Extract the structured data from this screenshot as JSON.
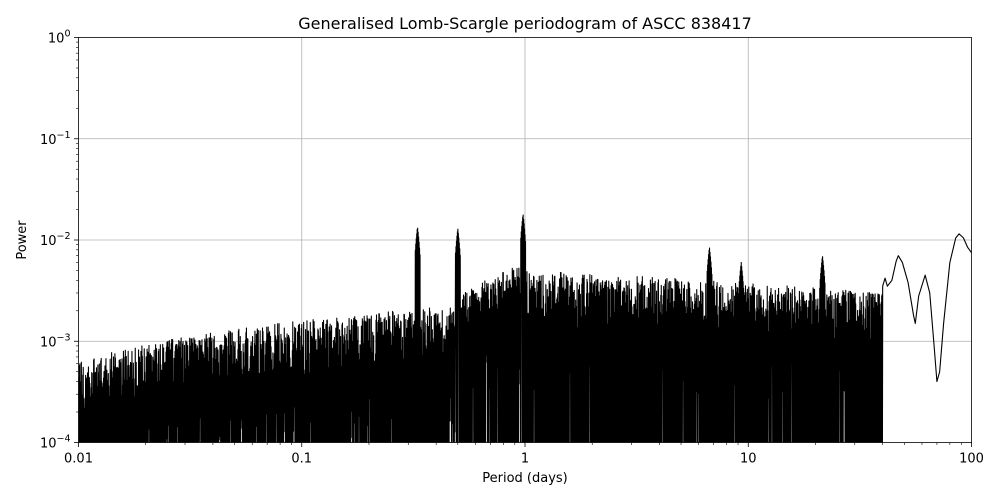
{
  "chart_data": {
    "type": "line",
    "title": "Generalised Lomb-Scargle periodogram of ASCC 838417",
    "xlabel": "Period (days)",
    "ylabel": "Power",
    "xscale": "log",
    "yscale": "log",
    "xlim": [
      0.01,
      100
    ],
    "ylim": [
      0.0001,
      1
    ],
    "grid": true,
    "line_color": "#000000",
    "x_ticks": [
      {
        "value": 0.01,
        "label": "0.01"
      },
      {
        "value": 0.1,
        "label": "0.1"
      },
      {
        "value": 1,
        "label": "1"
      },
      {
        "value": 10,
        "label": "10"
      },
      {
        "value": 100,
        "label": "100"
      }
    ],
    "y_ticks": [
      {
        "value": 0.0001,
        "base": "10",
        "exp": "−4"
      },
      {
        "value": 0.001,
        "base": "10",
        "exp": "−3"
      },
      {
        "value": 0.01,
        "base": "10",
        "exp": "−2"
      },
      {
        "value": 0.1,
        "base": "10",
        "exp": "−1"
      },
      {
        "value": 1,
        "base": "10",
        "exp": "0"
      }
    ],
    "peaks": [
      {
        "x": 0.5,
        "y": 0.013
      },
      {
        "x": 0.98,
        "y": 0.018
      },
      {
        "x": 0.33,
        "y": 0.0135
      },
      {
        "x": 6.7,
        "y": 0.0085
      },
      {
        "x": 9.3,
        "y": 0.006
      },
      {
        "x": 21.5,
        "y": 0.007
      },
      {
        "x": 47,
        "y": 0.007
      },
      {
        "x": 62,
        "y": 0.0045
      },
      {
        "x": 88,
        "y": 0.0115
      }
    ],
    "series": [
      {
        "values": [
          [
            40,
            0.0035
          ],
          [
            41,
            0.0042
          ],
          [
            42,
            0.0035
          ],
          [
            44,
            0.004
          ],
          [
            46,
            0.0062
          ],
          [
            47,
            0.007
          ],
          [
            49,
            0.006
          ],
          [
            52,
            0.0038
          ],
          [
            55,
            0.0018
          ],
          [
            56,
            0.0015
          ],
          [
            58,
            0.0028
          ],
          [
            62,
            0.0045
          ],
          [
            65,
            0.003
          ],
          [
            68,
            0.0009
          ],
          [
            70,
            0.0004
          ],
          [
            72,
            0.0005
          ],
          [
            75,
            0.0015
          ],
          [
            80,
            0.006
          ],
          [
            85,
            0.0105
          ],
          [
            88,
            0.0115
          ],
          [
            92,
            0.0105
          ],
          [
            96,
            0.0085
          ],
          [
            100,
            0.0075
          ]
        ]
      }
    ]
  }
}
